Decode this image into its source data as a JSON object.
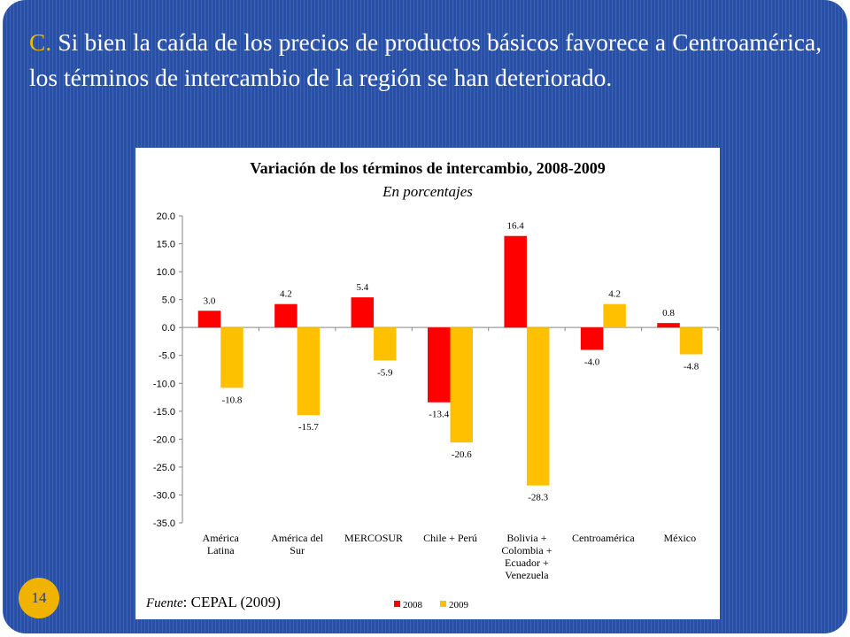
{
  "slide": {
    "heading_letter": "C.",
    "heading_text": " Si bien la caída de los precios de productos básicos favorece a Centroamérica, los términos de intercambio de la región se han deteriorado.",
    "page_number": "14",
    "source_label": "Fuente",
    "source_text": ": CEPAL (2009)"
  },
  "chart_data": {
    "type": "bar",
    "title": "Variación de los términos de intercambio, 2008-2009",
    "subtitle": "En porcentajes",
    "categories": [
      [
        "América",
        "Latina"
      ],
      [
        "América del",
        "Sur"
      ],
      [
        "MERCOSUR"
      ],
      [
        "Chile + Perú"
      ],
      [
        "Bolivia +",
        "Colombia +",
        "Ecuador +",
        "Venezuela"
      ],
      [
        "Centroamérica"
      ],
      [
        "México"
      ]
    ],
    "series": [
      {
        "name": "2008",
        "color": "#ff0000",
        "values": [
          3.0,
          4.2,
          5.4,
          -13.4,
          16.4,
          -4.0,
          0.8
        ]
      },
      {
        "name": "2009",
        "color": "#ffc000",
        "values": [
          -10.8,
          -15.7,
          -5.9,
          -20.6,
          -28.3,
          4.2,
          -4.8
        ]
      }
    ],
    "ylim": [
      -35,
      20
    ],
    "yticks": [
      20,
      15,
      10,
      5,
      0,
      -5,
      -10,
      -15,
      -20,
      -25,
      -30,
      -35
    ],
    "legend_position": "bottom",
    "grid": false
  }
}
